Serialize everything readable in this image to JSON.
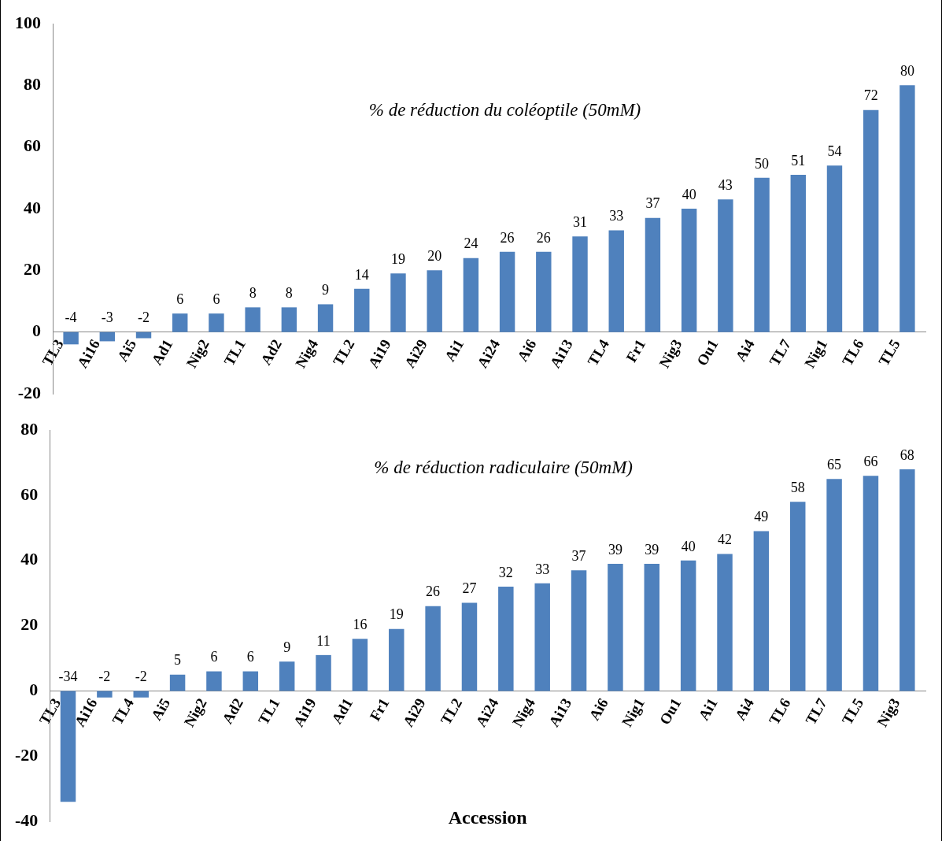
{
  "chart_data": [
    {
      "type": "bar",
      "title": "% de réduction du coléoptile (50mM)",
      "categories": [
        "TL3",
        "Ai16",
        "Ai5",
        "Ad1",
        "Nig2",
        "TL1",
        "Ad2",
        "Nig4",
        "TL2",
        "Ai19",
        "Ai29",
        "Ai1",
        "Ai24",
        "Ai6",
        "Ai13",
        "TL4",
        "Fr1",
        "Nig3",
        "Ou1",
        "Ai4",
        "TL7",
        "Nig1",
        "TL6",
        "TL5"
      ],
      "values": [
        -4,
        -3,
        -2,
        6,
        6,
        8,
        8,
        9,
        14,
        19,
        20,
        24,
        26,
        26,
        31,
        33,
        37,
        40,
        43,
        50,
        51,
        54,
        72,
        80
      ],
      "color": "#4f81bd",
      "ylim": [
        -20,
        100
      ],
      "yticks": [
        -20,
        0,
        20,
        40,
        60,
        80,
        100
      ],
      "data_labels": true,
      "grid": false,
      "legend": false
    },
    {
      "type": "bar",
      "title": "% de réduction radiculaire (50mM)",
      "xlabel": "Accession",
      "categories": [
        "TL3",
        "Ai16",
        "TL4",
        "Ai5",
        "Nig2",
        "Ad2",
        "TL1",
        "Ai19",
        "Ad1",
        "Fr1",
        "Ai29",
        "TL2",
        "Ai24",
        "Nig4",
        "Ai13",
        "Ai6",
        "Nig1",
        "Ou1",
        "Ai1",
        "Ai4",
        "TL6",
        "TL7",
        "TL5",
        "Nig3"
      ],
      "values": [
        -34,
        -2,
        -2,
        5,
        6,
        6,
        9,
        11,
        16,
        19,
        26,
        27,
        32,
        33,
        37,
        39,
        39,
        40,
        42,
        49,
        58,
        65,
        66,
        68
      ],
      "color": "#4f81bd",
      "ylim": [
        -40,
        80
      ],
      "yticks": [
        -40,
        -20,
        0,
        20,
        40,
        60,
        80
      ],
      "data_labels": true,
      "grid": false,
      "legend": false
    }
  ]
}
